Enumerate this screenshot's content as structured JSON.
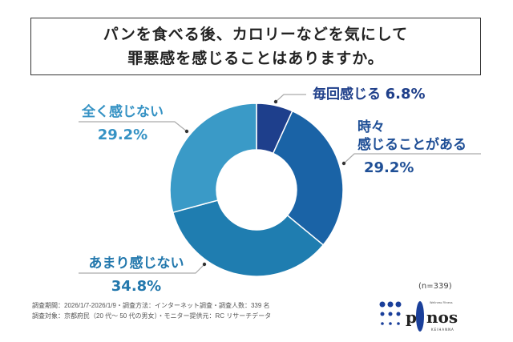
{
  "title": {
    "line1": "パンを食べる後、カロリーなどを気にして",
    "line2": "罪悪感を感じることはありますか。"
  },
  "chart_data": {
    "type": "pie",
    "donut": true,
    "categories": [
      "毎回感じる",
      "時々感じることがある",
      "あまり感じない",
      "全く感じない"
    ],
    "values": [
      6.8,
      29.2,
      34.8,
      29.2
    ],
    "unit": "%",
    "colors": [
      "#1e3f8c",
      "#1a63a6",
      "#1f7db0",
      "#3a9ac7"
    ],
    "labels": [
      {
        "text": "毎回感じる",
        "pct": "6.8%"
      },
      {
        "text1": "時々",
        "text2": "感じることがある",
        "pct": "29.2%"
      },
      {
        "text": "あまり感じない",
        "pct": "34.8%"
      },
      {
        "text": "全く感じない",
        "pct": "29.2%"
      }
    ]
  },
  "sample": "(n=339)",
  "notes": {
    "line1": "調査期間：2026/1/7-2026/1/9・調査方法：インターネット調査・調査人数：339 名",
    "line2": "調査対象：京都府民（20 代～ 50 代の男女）・モニター提供元：RC リサーチデータ"
  },
  "logo": {
    "name": "pinos",
    "tagline": "Wellness Fitness",
    "sub": "KEIHANNA"
  }
}
